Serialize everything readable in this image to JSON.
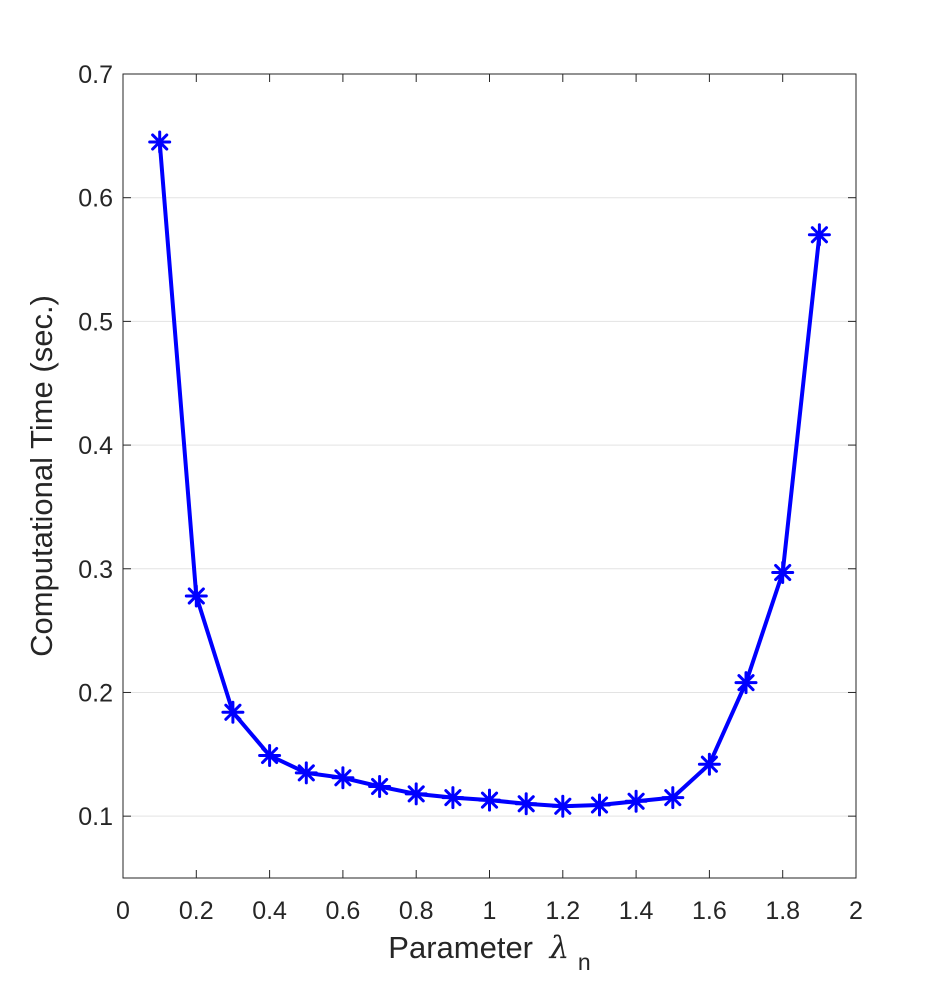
{
  "chart_data": {
    "type": "line",
    "x": [
      0.1,
      0.2,
      0.3,
      0.4,
      0.5,
      0.6,
      0.7,
      0.8,
      0.9,
      1.0,
      1.1,
      1.2,
      1.3,
      1.4,
      1.5,
      1.6,
      1.7,
      1.8,
      1.9
    ],
    "series": [
      {
        "values": [
          0.645,
          0.278,
          0.184,
          0.149,
          0.135,
          0.131,
          0.124,
          0.118,
          0.115,
          0.113,
          0.11,
          0.108,
          0.109,
          0.112,
          0.115,
          0.142,
          0.208,
          0.297,
          0.57
        ],
        "color": "#0000ff",
        "marker": "asterisk"
      }
    ],
    "xlabel": "Parameter",
    "xlabel_symbol": "λ",
    "xlabel_subscript": "n",
    "ylabel": "Computational Time (sec.)",
    "xlim": [
      0,
      2
    ],
    "ylim": [
      0.05,
      0.7
    ],
    "xticks": [
      "0",
      "0.2",
      "0.4",
      "0.6",
      "0.8",
      "1",
      "1.2",
      "1.4",
      "1.6",
      "1.8",
      "2"
    ],
    "yticks": [
      "0.1",
      "0.2",
      "0.3",
      "0.4",
      "0.5",
      "0.6",
      "0.7"
    ],
    "grid": "horizontal"
  }
}
